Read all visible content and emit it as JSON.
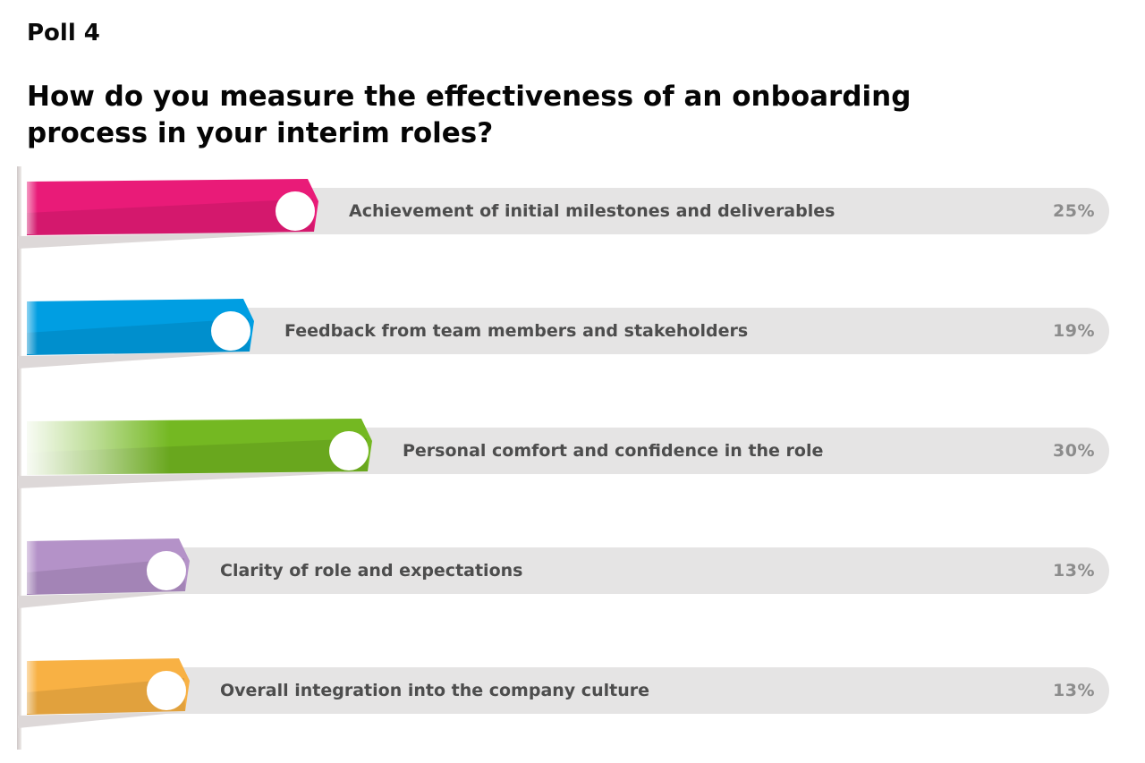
{
  "header": {
    "poll_label": "Poll 4",
    "question": "How do you measure the effectiveness of an onboarding process in your interim roles?"
  },
  "chart_data": {
    "type": "bar",
    "orientation": "horizontal",
    "title": "How do you measure the effectiveness of an onboarding process in your interim roles?",
    "categories": [
      "Achievement of initial milestones and deliverables",
      "Feedback from team members and stakeholders",
      "Personal comfort and confidence in the role",
      "Clarity of role and expectations",
      "Overall integration into the company culture"
    ],
    "values": [
      25,
      19,
      30,
      13,
      13
    ],
    "value_labels": [
      "25%",
      "19%",
      "30%",
      "13%",
      "13%"
    ],
    "unit": "%",
    "xlim": [
      0,
      100
    ],
    "grid": false,
    "legend": false,
    "bar_colors": [
      "#E91B78",
      "#009EE2",
      "#74B822",
      "#B492C8",
      "#F8B144"
    ],
    "track_color": "#E5E4E4",
    "shadow_wedge_color": "#DDD8D8",
    "axis_line_color": "#D6D0D0",
    "category_label_color": "#4D4D4D",
    "value_label_color": "#8C8C8C",
    "end_circle_color": "#FFFFFF"
  }
}
